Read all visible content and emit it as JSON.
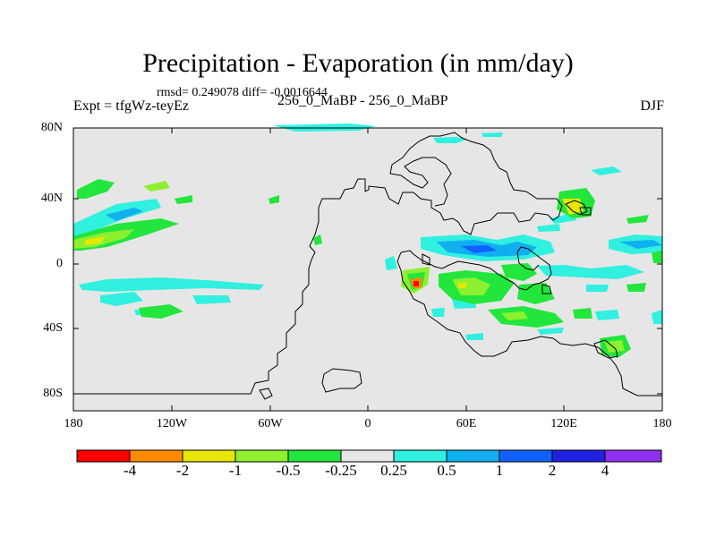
{
  "title": "Precipitation - Evaporation (in mm/day)",
  "stats": "rmsd= 0.249078 diff= -0.0016644",
  "experiment": "Expt = tfgWz-teyEz",
  "comparison": "256_0_MaBP - 256_0_MaBP",
  "season": "DJF",
  "map": {
    "lat_labels": [
      "80N",
      "40N",
      "0",
      "40S",
      "80S"
    ],
    "lon_labels": [
      "180",
      "120W",
      "60W",
      "0",
      "60E",
      "120E",
      "180"
    ],
    "background_color": "#e6e6e6"
  },
  "colorbar": {
    "labels": [
      "-4",
      "-2",
      "-1",
      "-0.5",
      "-0.25",
      "0.25",
      "0.5",
      "1",
      "2",
      "4"
    ],
    "colors": [
      "#ff0000",
      "#ff8a00",
      "#e6e600",
      "#8cf030",
      "#22e63c",
      "#e6e6e6",
      "#30f0e0",
      "#10b0f0",
      "#1060ff",
      "#2020e0",
      "#9030f0"
    ]
  }
}
